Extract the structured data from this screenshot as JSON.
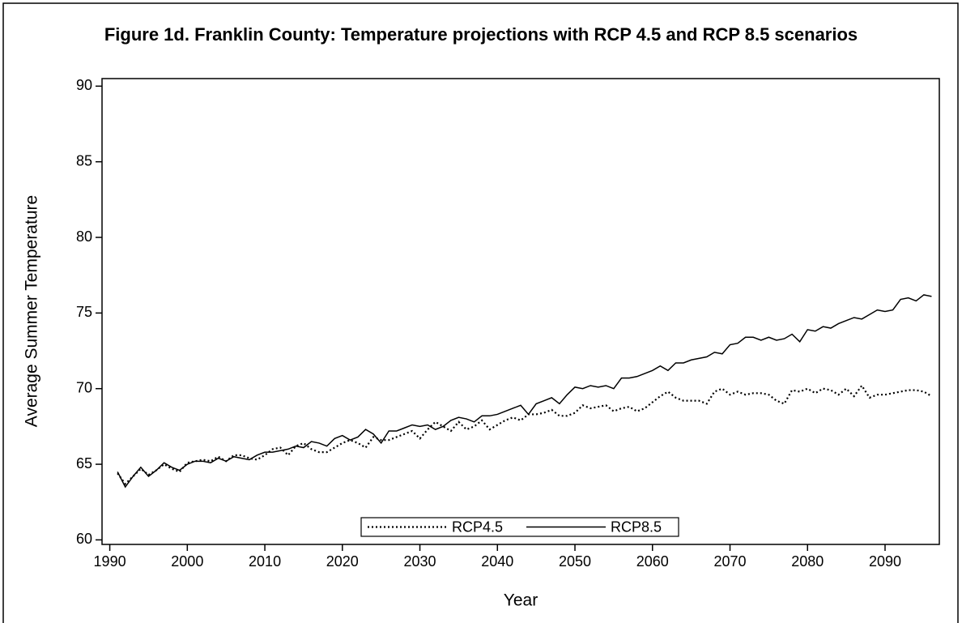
{
  "chart_data": {
    "type": "line",
    "title": "Figure 1d. Franklin County: Temperature projections with RCP 4.5 and RCP 8.5 scenarios",
    "x_label": "Year",
    "y_label": "Average Summer Temperature",
    "x": [
      1991,
      1992,
      1993,
      1994,
      1995,
      1996,
      1997,
      1998,
      1999,
      2000,
      2001,
      2002,
      2003,
      2004,
      2005,
      2006,
      2007,
      2008,
      2009,
      2010,
      2011,
      2012,
      2013,
      2014,
      2015,
      2016,
      2017,
      2018,
      2019,
      2020,
      2021,
      2022,
      2023,
      2024,
      2025,
      2026,
      2027,
      2028,
      2029,
      2030,
      2031,
      2032,
      2033,
      2034,
      2035,
      2036,
      2037,
      2038,
      2039,
      2040,
      2041,
      2042,
      2043,
      2044,
      2045,
      2046,
      2047,
      2048,
      2049,
      2050,
      2051,
      2052,
      2053,
      2054,
      2055,
      2056,
      2057,
      2058,
      2059,
      2060,
      2061,
      2062,
      2063,
      2064,
      2065,
      2066,
      2067,
      2068,
      2069,
      2070,
      2071,
      2072,
      2073,
      2074,
      2075,
      2076,
      2077,
      2078,
      2079,
      2080,
      2081,
      2082,
      2083,
      2084,
      2085,
      2086,
      2087,
      2088,
      2089,
      2090,
      2091,
      2092,
      2093,
      2094,
      2095,
      2096
    ],
    "series": [
      {
        "name": "RCP4.5",
        "color": "#000000",
        "line_style": "dotted",
        "values": [
          64.4,
          63.7,
          64.2,
          64.7,
          64.3,
          64.6,
          65.0,
          64.7,
          64.5,
          65.1,
          65.2,
          65.3,
          65.2,
          65.5,
          65.2,
          65.6,
          65.6,
          65.4,
          65.3,
          65.6,
          66.0,
          66.1,
          65.6,
          66.2,
          66.4,
          66.0,
          65.8,
          65.8,
          66.1,
          66.4,
          66.6,
          66.4,
          66.1,
          66.8,
          66.6,
          66.6,
          66.8,
          67.0,
          67.2,
          66.7,
          67.3,
          67.8,
          67.5,
          67.2,
          67.8,
          67.3,
          67.5,
          67.9,
          67.3,
          67.6,
          67.9,
          68.1,
          67.9,
          68.3,
          68.3,
          68.4,
          68.6,
          68.2,
          68.2,
          68.4,
          68.9,
          68.7,
          68.8,
          68.9,
          68.5,
          68.7,
          68.8,
          68.5,
          68.7,
          69.1,
          69.5,
          69.8,
          69.4,
          69.2,
          69.2,
          69.2,
          69.0,
          69.8,
          70.0,
          69.6,
          69.8,
          69.6,
          69.7,
          69.7,
          69.6,
          69.2,
          69.0,
          69.9,
          69.8,
          70.0,
          69.7,
          70.0,
          69.9,
          69.6,
          70.0,
          69.5,
          70.2,
          69.4,
          69.6,
          69.6,
          69.7,
          69.8,
          69.9,
          69.9,
          69.8,
          69.5
        ]
      },
      {
        "name": "RCP8.5",
        "color": "#000000",
        "line_style": "solid",
        "values": [
          64.5,
          63.5,
          64.2,
          64.8,
          64.2,
          64.6,
          65.1,
          64.8,
          64.6,
          65.0,
          65.2,
          65.2,
          65.1,
          65.4,
          65.2,
          65.5,
          65.4,
          65.3,
          65.6,
          65.8,
          65.8,
          65.9,
          66.0,
          66.2,
          66.1,
          66.5,
          66.4,
          66.2,
          66.7,
          66.9,
          66.6,
          66.8,
          67.3,
          67.0,
          66.4,
          67.2,
          67.2,
          67.4,
          67.6,
          67.5,
          67.6,
          67.3,
          67.5,
          67.9,
          68.1,
          68.0,
          67.8,
          68.2,
          68.2,
          68.3,
          68.5,
          68.7,
          68.9,
          68.3,
          69.0,
          69.2,
          69.4,
          69.0,
          69.6,
          70.1,
          70.0,
          70.2,
          70.1,
          70.2,
          70.0,
          70.7,
          70.7,
          70.8,
          71.0,
          71.2,
          71.5,
          71.2,
          71.7,
          71.7,
          71.9,
          72.0,
          72.1,
          72.4,
          72.3,
          72.9,
          73.0,
          73.4,
          73.4,
          73.2,
          73.4,
          73.2,
          73.3,
          73.6,
          73.1,
          73.9,
          73.8,
          74.1,
          74.0,
          74.3,
          74.5,
          74.7,
          74.6,
          74.9,
          75.2,
          75.1,
          75.2,
          75.9,
          76.0,
          75.8,
          76.2,
          76.1
        ]
      }
    ],
    "xlim": [
      1989,
      2097
    ],
    "xticks": [
      1990,
      2000,
      2010,
      2020,
      2030,
      2040,
      2050,
      2060,
      2070,
      2080,
      2090
    ],
    "ylim": [
      59.7,
      90.5
    ],
    "yticks": [
      60,
      65,
      70,
      75,
      80,
      85,
      90
    ],
    "legend": "bottom"
  }
}
